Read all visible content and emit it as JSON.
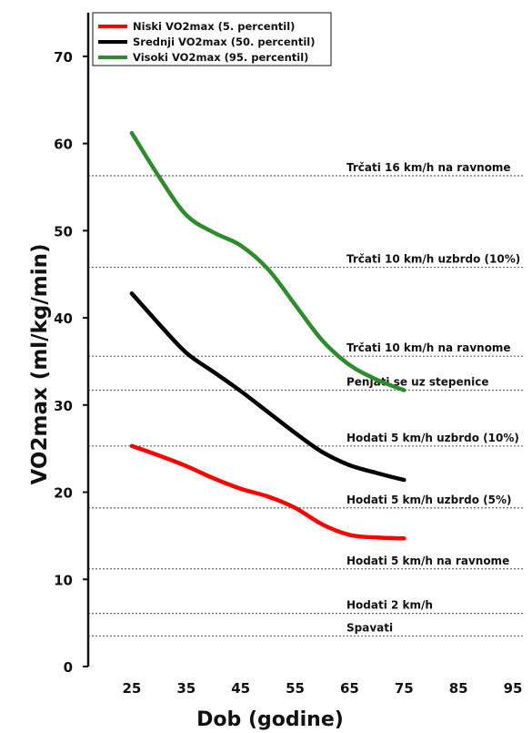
{
  "chart_data": {
    "type": "line",
    "xlabel": "Dob (godine)",
    "ylabel": "VO2max (ml/kg/min)",
    "x_ticks": [
      25,
      35,
      45,
      55,
      65,
      75,
      85,
      95
    ],
    "y_ticks": [
      0,
      10,
      20,
      30,
      40,
      50,
      60,
      70
    ],
    "xlim": [
      17,
      101
    ],
    "ylim": [
      0,
      75
    ],
    "legend_position": "top-left",
    "series": [
      {
        "name": "Niski VO2max (5. percentil)",
        "color": "#ff0000",
        "x": [
          25,
          30,
          35,
          40,
          45,
          50,
          55,
          60,
          65,
          70,
          75
        ],
        "y": [
          25.3,
          24.2,
          23.0,
          21.6,
          20.4,
          19.5,
          18.2,
          16.3,
          15.1,
          14.8,
          14.7
        ]
      },
      {
        "name": "Srednji VO2max (50. percentil)",
        "color": "#000000",
        "x": [
          25,
          30,
          35,
          40,
          45,
          50,
          55,
          60,
          65,
          70,
          75
        ],
        "y": [
          42.8,
          39.3,
          36.0,
          33.8,
          31.6,
          29.2,
          26.8,
          24.6,
          23.1,
          22.2,
          21.4
        ]
      },
      {
        "name": "Visoki VO2max (95. percentil)",
        "color": "#2e8b2e",
        "x": [
          25,
          30,
          35,
          40,
          45,
          50,
          55,
          60,
          65,
          70,
          75
        ],
        "y": [
          61.2,
          56.2,
          51.8,
          49.8,
          48.3,
          45.6,
          41.5,
          37.4,
          34.6,
          32.9,
          31.7
        ]
      }
    ],
    "reference_lines": [
      {
        "y": 56.3,
        "label": "Trčati  16 km/h na ravnome"
      },
      {
        "y": 45.8,
        "label": "Trčati 10 km/h uzbrdo (10%)"
      },
      {
        "y": 35.6,
        "label": "Trčati 10 km/h na ravnome"
      },
      {
        "y": 31.7,
        "label": "Penjati se uz stepenice"
      },
      {
        "y": 25.3,
        "label": "Hodati 5 km/h uzbrdo (10%)"
      },
      {
        "y": 18.2,
        "label": "Hodati 5 km/h uzbrdo (5%)"
      },
      {
        "y": 11.2,
        "label": "Hodati 5 km/h na ravnome"
      },
      {
        "y": 6.1,
        "label": "Hodati 2 km/h"
      },
      {
        "y": 3.5,
        "label": "Spavati"
      }
    ]
  }
}
